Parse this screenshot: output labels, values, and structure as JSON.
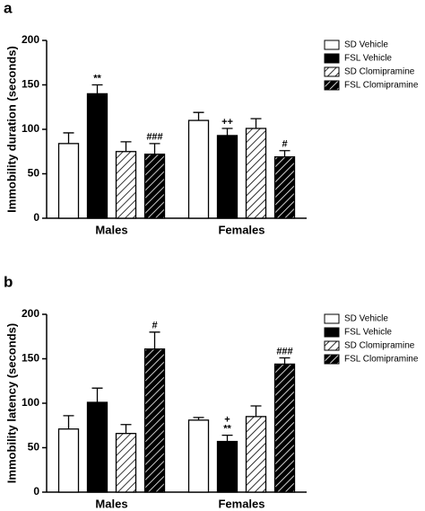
{
  "chart_data": [
    {
      "type": "bar",
      "panel_label": "a",
      "y_label": "Immobility duration (seconds)",
      "categories": [
        "Males",
        "Females"
      ],
      "series": [
        {
          "name": "SD Vehicle",
          "color": "#ffffff",
          "hatch": false,
          "values": [
            84,
            110
          ],
          "errors": [
            12,
            9
          ],
          "annotations": [
            null,
            null
          ]
        },
        {
          "name": "FSL Vehicle",
          "color": "#000000",
          "hatch": false,
          "values": [
            140,
            93
          ],
          "errors": [
            10,
            8
          ],
          "annotations": [
            [
              "**"
            ],
            [
              "++"
            ]
          ]
        },
        {
          "name": "SD Clomipramine",
          "color": "#ffffff",
          "hatch": true,
          "values": [
            75,
            101
          ],
          "errors": [
            11,
            11
          ],
          "annotations": [
            null,
            null
          ]
        },
        {
          "name": "FSL Clomipramine",
          "color": "#000000",
          "hatch": true,
          "values": [
            72,
            69
          ],
          "errors": [
            12,
            7
          ],
          "annotations": [
            [
              "###"
            ],
            [
              "#"
            ]
          ]
        }
      ],
      "ylim": [
        0,
        200
      ],
      "yticks": [
        0,
        50,
        100,
        150,
        200
      ],
      "grid": false,
      "legend": "right"
    },
    {
      "type": "bar",
      "panel_label": "b",
      "y_label": "Immobility latency (seconds)",
      "categories": [
        "Males",
        "Females"
      ],
      "series": [
        {
          "name": "SD Vehicle",
          "color": "#ffffff",
          "hatch": false,
          "values": [
            71,
            81
          ],
          "errors": [
            15,
            3
          ],
          "annotations": [
            null,
            null
          ]
        },
        {
          "name": "FSL Vehicle",
          "color": "#000000",
          "hatch": false,
          "values": [
            101,
            57
          ],
          "errors": [
            16,
            7
          ],
          "annotations": [
            null,
            [
              "**",
              "+"
            ]
          ]
        },
        {
          "name": "SD Clomipramine",
          "color": "#ffffff",
          "hatch": true,
          "values": [
            66,
            85
          ],
          "errors": [
            10,
            12
          ],
          "annotations": [
            null,
            null
          ]
        },
        {
          "name": "FSL Clomipramine",
          "color": "#000000",
          "hatch": true,
          "values": [
            161,
            144
          ],
          "errors": [
            19,
            7
          ],
          "annotations": [
            [
              "#"
            ],
            [
              "###"
            ]
          ]
        }
      ],
      "ylim": [
        0,
        200
      ],
      "yticks": [
        0,
        50,
        100,
        150,
        200
      ],
      "grid": false,
      "legend": "right"
    }
  ]
}
